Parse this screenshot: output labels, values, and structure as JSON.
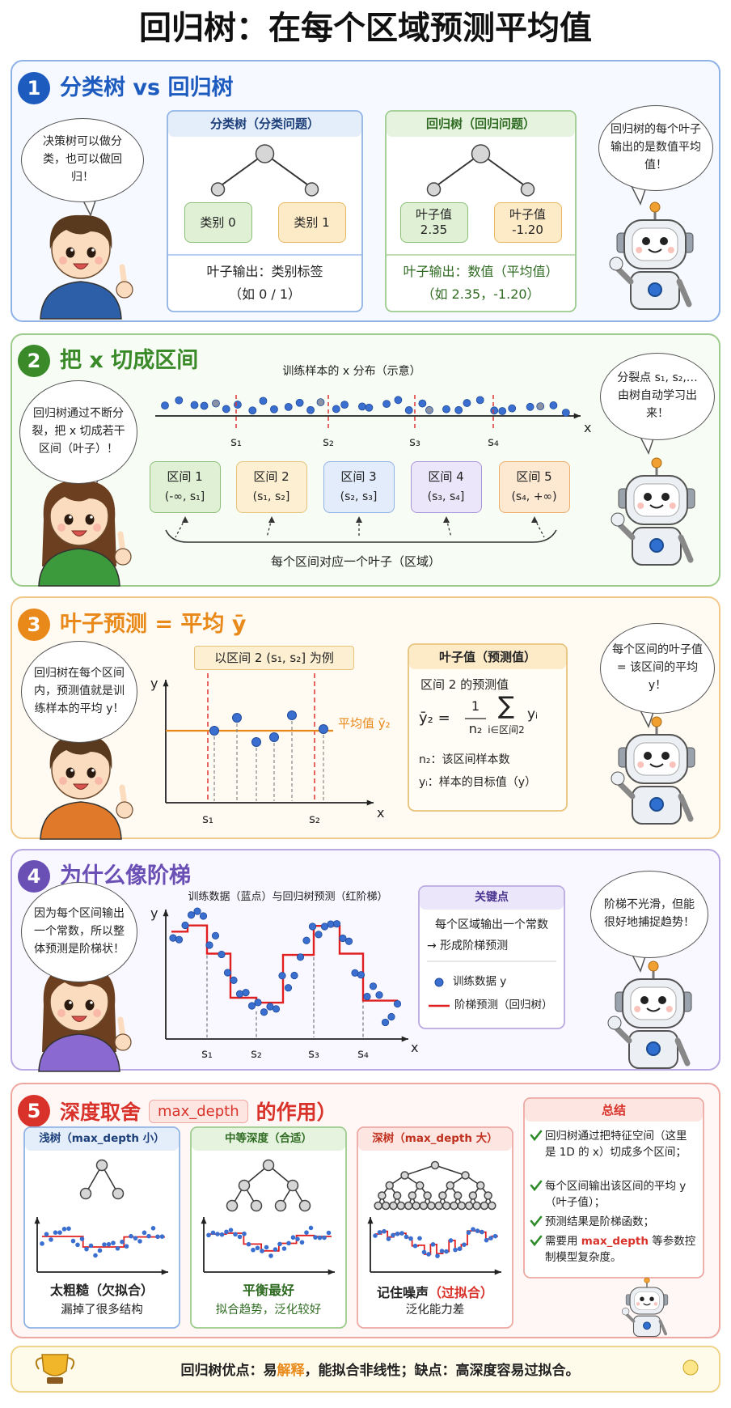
{
  "title": "回归树：在每个区域预测平均值",
  "section1": {
    "number": "1",
    "heading": "分类树 vs 回归树",
    "left_bubble": "决策树可以做分类，也可以做回归！",
    "right_bubble": "回归树的每个叶子输出的是数值平均值！",
    "panels": [
      {
        "title": "分类树（分类问题）",
        "leaves": [
          "类别 0",
          "类别 1"
        ],
        "output": "叶子输出：类别标签",
        "example": "（如 0 / 1）"
      },
      {
        "title": "回归树（回归问题）",
        "leaves": [
          "叶子值\n2.35",
          "叶子值\n-1.20"
        ],
        "output": "叶子输出：数值（平均值）",
        "example": "（如 2.35，-1.20）"
      }
    ]
  },
  "section2": {
    "number": "2",
    "heading": "把 x 切成区间",
    "caption": "训练样本的 x 分布（示意）",
    "axis_label": "x",
    "splits": [
      "s₁",
      "s₂",
      "s₃",
      "s₄"
    ],
    "intervals": [
      {
        "name": "区间 1",
        "range": "(-∞, s₁]"
      },
      {
        "name": "区间 2",
        "range": "(s₁, s₂]"
      },
      {
        "name": "区间 3",
        "range": "(s₂, s₃]"
      },
      {
        "name": "区间 4",
        "range": "(s₃, s₄]"
      },
      {
        "name": "区间 5",
        "range": "(s₄, +∞)"
      }
    ],
    "note": "每个区间对应一个叶子（区域）",
    "left_bubble": "回归树通过不断分裂，把 x 切成若干区间（叶子）！",
    "right_bubble": "分裂点 s₁, s₂,… 由树自动学习出来！"
  },
  "section3": {
    "number": "3",
    "heading": "叶子预测 = 平均 ȳ",
    "left_bubble": "回归树在每个区间内，预测值就是训练样本的平均 y！",
    "example_label": "以区间 2 (s₁, s₂] 为例",
    "y_label": "y",
    "x_label": "x",
    "splits": [
      "s₁",
      "s₂"
    ],
    "mean_label": "平均值 ȳ₂",
    "box": {
      "title": "叶子值（预测值）",
      "subtitle": "区间 2 的预测值",
      "formula": {
        "lhs": "ȳ₂ =",
        "numerator": "1",
        "denominator": "n₂",
        "sigma": "∑",
        "index": "i∈区间2",
        "term": "yᵢ"
      },
      "notes": [
        "n₂：该区间样本数",
        "yᵢ：样本的目标值（y）"
      ]
    },
    "right_bubble": "每个区间的叶子值 = 该区间的平均 y！"
  },
  "section4": {
    "number": "4",
    "heading": "为什么像阶梯",
    "caption": "训练数据（蓝点）与回归树预测（红阶梯）",
    "y_label": "y",
    "x_label": "x",
    "splits": [
      "s₁",
      "s₂",
      "s₃",
      "s₄"
    ],
    "keypoints": {
      "title": "关键点",
      "lines": [
        "每个区域输出一个常数",
        "→ 形成阶梯预测"
      ],
      "legend": [
        "训练数据 y",
        "阶梯预测（回归树）"
      ]
    },
    "left_bubble": "因为每个区间输出一个常数，所以整体预测是阶梯状！",
    "right_bubble": "阶梯不光滑，但能很好地捕捉趋势！"
  },
  "section5": {
    "number": "5",
    "heading": "深度取舍",
    "heading_pill": "max_depth",
    "heading_end": "的作用）",
    "panels": [
      {
        "title": "浅树（max_depth 小）",
        "verdict": "太粗糙（欠拟合）",
        "detail": "漏掉了很多结构"
      },
      {
        "title": "中等深度（合适）",
        "verdict": "平衡最好",
        "detail": "拟合趋势，泛化较好"
      },
      {
        "title": "深树（max_depth 大）",
        "verdict": "记住噪声",
        "verdict_note": "（过拟合）",
        "detail": "泛化能力差"
      }
    ],
    "summary": {
      "title": "总结",
      "items": [
        "回归树通过把特征空间（这里是 1D 的 x）切成多个区间；",
        "每个区间输出该区间的平均 y（叶子值）；",
        "预测结果是阶梯函数；"
      ],
      "last_item": {
        "before": "需要用 ",
        "highlight": "max_depth",
        "after": " 等参数控制模型复杂度。"
      }
    }
  },
  "footer": {
    "before": "回归树优点：易",
    "highlight": "解释",
    "after": "，能拟合非线性；缺点：高深度容易过拟合。"
  }
}
